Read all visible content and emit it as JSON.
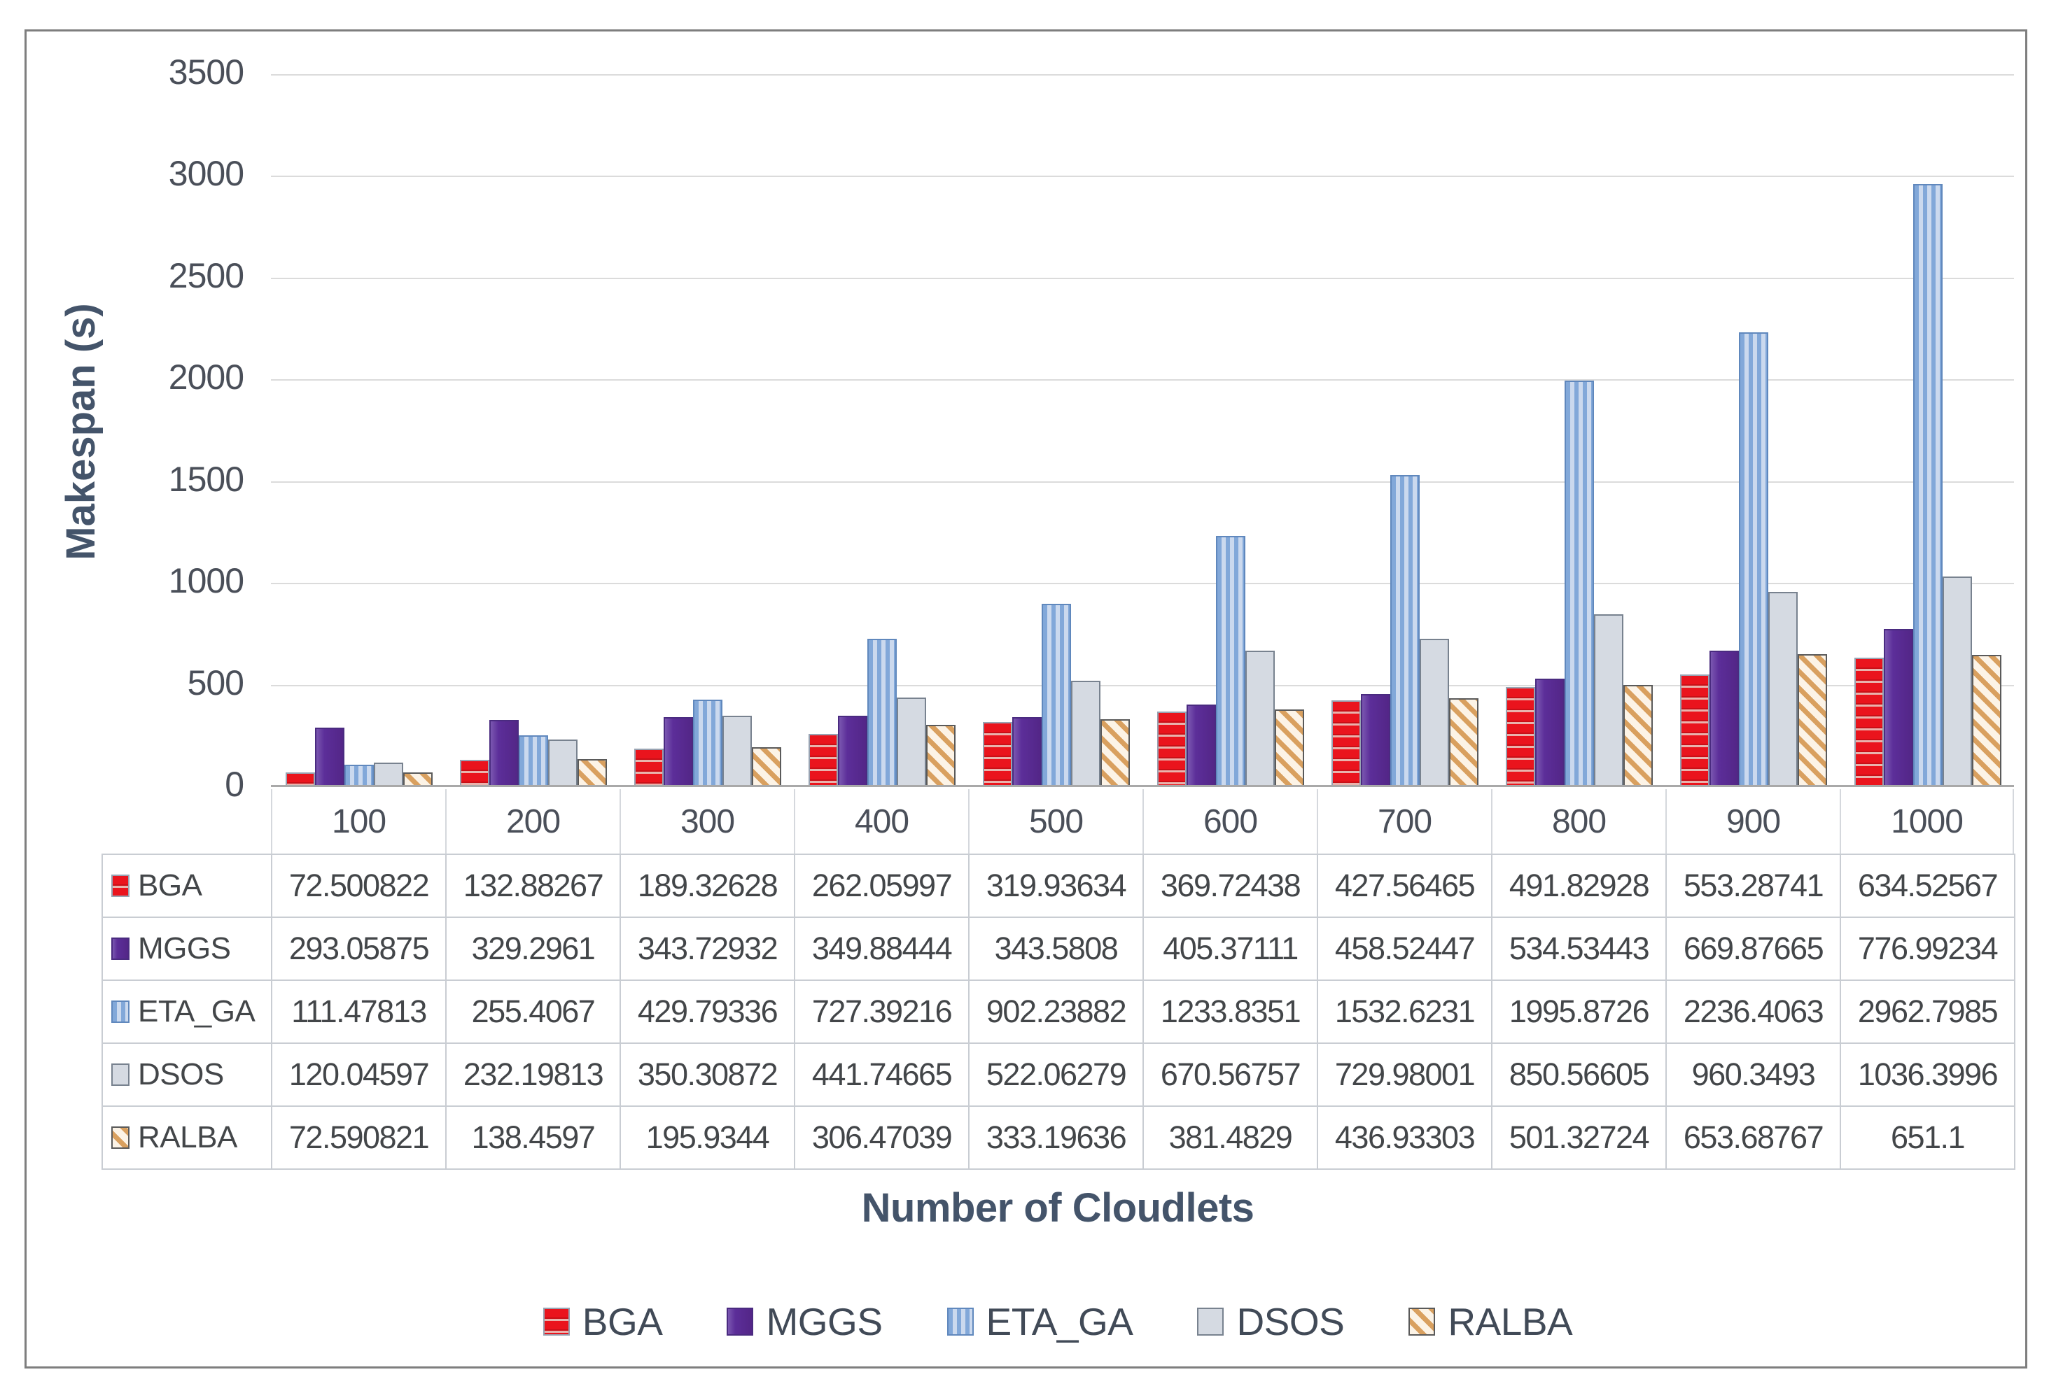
{
  "chart_data": {
    "type": "bar",
    "title": "",
    "xlabel": "Number of Cloudlets",
    "ylabel": "Makespan (s)",
    "ylim": [
      0,
      3500
    ],
    "ytick_step": 500,
    "yticks": [
      "3500",
      "3000",
      "2500",
      "2000",
      "1500",
      "1000",
      "500",
      "0"
    ],
    "categories": [
      "100",
      "200",
      "300",
      "400",
      "500",
      "600",
      "700",
      "800",
      "900",
      "1000"
    ],
    "grid": true,
    "legend_position": "bottom",
    "legend": [
      "BGA",
      "MGGS",
      "ETA_GA",
      "DSOS",
      "RALBA"
    ],
    "colors": {
      "bga_fill": "#EA141D",
      "mggs_fill": "#5C2E99",
      "eta_ga_fill": "#A9C4E6",
      "dsos_fill": "#D5DAE2",
      "ralba_fill": "#FCF3E6",
      "ralba_stripe": "#D9A05F",
      "axis_title_text": "#44546A",
      "tick_text": "#4A4F59",
      "gridline": "#DBDBDB",
      "table_border": "#C9CDD3",
      "figure_border": "#7E7E7E"
    },
    "series": [
      {
        "name": "BGA",
        "pattern": "horizontal-stripes",
        "fill": "#EA141D",
        "values": [
          72.500822,
          132.88267,
          189.32628,
          262.05997,
          319.93634,
          369.72438,
          427.56465,
          491.82928,
          553.28741,
          634.52567
        ],
        "display": [
          "72.500822",
          "132.88267",
          "189.32628",
          "262.05997",
          "319.93634",
          "369.72438",
          "427.56465",
          "491.82928",
          "553.28741",
          "634.52567"
        ]
      },
      {
        "name": "MGGS",
        "pattern": "solid",
        "fill": "#5C2E99",
        "values": [
          293.05875,
          329.2961,
          343.72932,
          349.88444,
          343.5808,
          405.37111,
          458.52447,
          534.53443,
          669.87665,
          776.99234
        ],
        "display": [
          "293.05875",
          "329.2961",
          "343.72932",
          "349.88444",
          "343.5808",
          "405.37111",
          "458.52447",
          "534.53443",
          "669.87665",
          "776.99234"
        ]
      },
      {
        "name": "ETA_GA",
        "pattern": "vertical-stripes",
        "fill": "#A9C4E6",
        "values": [
          111.47813,
          255.4067,
          429.79336,
          727.39216,
          902.23882,
          1233.8351,
          1532.6231,
          1995.8726,
          2236.4063,
          2962.7985
        ],
        "display": [
          "111.47813",
          "255.4067",
          "429.79336",
          "727.39216",
          "902.23882",
          "1233.8351",
          "1532.6231",
          "1995.8726",
          "2236.4063",
          "2962.7985"
        ]
      },
      {
        "name": "DSOS",
        "pattern": "solid",
        "fill": "#D5DAE2",
        "values": [
          120.04597,
          232.19813,
          350.30872,
          441.74665,
          522.06279,
          670.56757,
          729.98001,
          850.56605,
          960.3493,
          1036.3996
        ],
        "display": [
          "120.04597",
          "232.19813",
          "350.30872",
          "441.74665",
          "522.06279",
          "670.56757",
          "729.98001",
          "850.56605",
          "960.3493",
          "1036.3996"
        ]
      },
      {
        "name": "RALBA",
        "pattern": "diagonal-stripes",
        "fill": "#FCF3E6",
        "values": [
          72.590821,
          138.4597,
          195.9344,
          306.47039,
          333.19636,
          381.4829,
          436.93303,
          501.32724,
          653.68767,
          651.1
        ],
        "display": [
          "72.590821",
          "138.4597",
          "195.9344",
          "306.47039",
          "333.19636",
          "381.4829",
          "436.93303",
          "501.32724",
          "653.68767",
          "651.1"
        ]
      }
    ]
  }
}
